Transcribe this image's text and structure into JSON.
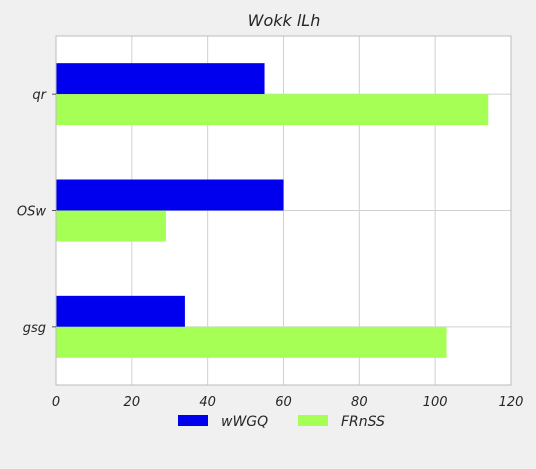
{
  "chart_data": {
    "type": "bar",
    "orientation": "horizontal",
    "title": "Wokk lLh",
    "xlabel": "",
    "ylabel": "",
    "categories": [
      "qr",
      "OSw",
      "gsg"
    ],
    "series": [
      {
        "name": "wWGQ",
        "values": [
          55,
          60,
          34
        ],
        "color": "#0000ee"
      },
      {
        "name": "FRnSS",
        "values": [
          114,
          29,
          103
        ],
        "color": "#a6ff55"
      }
    ],
    "xlim": [
      0,
      120
    ],
    "xticks": [
      0,
      20,
      40,
      60,
      80,
      100,
      120
    ],
    "grid": true,
    "legend_position": "bottom-center",
    "background_color": "#f0f0f0",
    "plot_background_color": "#ffffff",
    "grid_color": "#d0d0d0"
  }
}
